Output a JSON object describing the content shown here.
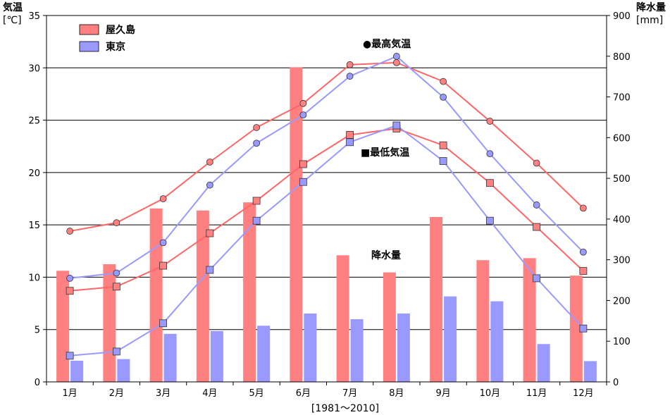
{
  "chart_data": {
    "type": "bar+line",
    "title": "",
    "period_label": "[1981～2010]",
    "left_axis": {
      "title": "気温",
      "unit": "[℃]",
      "range": [
        0,
        35
      ],
      "ticks": [
        0,
        5,
        10,
        15,
        20,
        25,
        30,
        35
      ]
    },
    "right_axis": {
      "title": "降水量",
      "unit": "[mm]",
      "range": [
        0,
        900
      ],
      "ticks": [
        0,
        100,
        200,
        300,
        400,
        500,
        600,
        700,
        800,
        900
      ]
    },
    "categories": [
      "1月",
      "2月",
      "3月",
      "4月",
      "5月",
      "6月",
      "7月",
      "8月",
      "9月",
      "10月",
      "11月",
      "12月"
    ],
    "legend": [
      {
        "name": "屋久島",
        "color": "#ff8080"
      },
      {
        "name": "東京",
        "color": "#9999ff"
      }
    ],
    "annotations": {
      "max_temp": "●最高気温",
      "min_temp": "■最低気温",
      "precip": "降水量"
    },
    "grid": "horizontal",
    "legend_position": "top-left",
    "series": {
      "precipitation_mm": [
        {
          "name": "屋久島",
          "color": "#ff8080",
          "values": [
            273,
            289,
            426,
            421,
            441,
            773,
            311,
            269,
            405,
            299,
            304,
            261
          ]
        },
        {
          "name": "東京",
          "color": "#9999ff",
          "values": [
            52,
            56,
            118,
            125,
            138,
            168,
            154,
            168,
            210,
            198,
            93,
            51
          ]
        }
      ],
      "max_temp_c": [
        {
          "name": "屋久島",
          "color": "#ff6666",
          "marker": "circle",
          "values": [
            14.4,
            15.2,
            17.5,
            21.0,
            24.3,
            26.6,
            30.3,
            30.5,
            28.7,
            24.9,
            20.9,
            16.6
          ]
        },
        {
          "name": "東京",
          "color": "#9999ff",
          "marker": "circle",
          "values": [
            9.9,
            10.4,
            13.3,
            18.8,
            22.8,
            25.5,
            29.2,
            31.1,
            27.2,
            21.8,
            16.9,
            12.4
          ]
        }
      ],
      "min_temp_c": [
        {
          "name": "屋久島",
          "color": "#ff6666",
          "marker": "square",
          "values": [
            8.7,
            9.1,
            11.1,
            14.2,
            17.3,
            20.8,
            23.6,
            24.2,
            22.6,
            19.0,
            14.8,
            10.6
          ]
        },
        {
          "name": "東京",
          "color": "#9999ff",
          "marker": "square",
          "values": [
            2.5,
            2.9,
            5.6,
            10.7,
            15.4,
            19.1,
            22.9,
            24.5,
            21.1,
            15.4,
            9.9,
            5.1
          ]
        }
      ]
    }
  }
}
